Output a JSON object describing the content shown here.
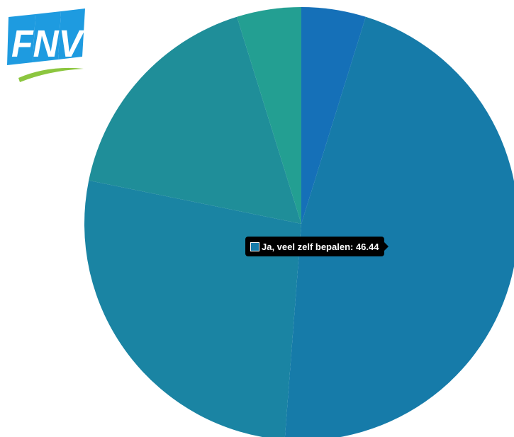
{
  "brand": {
    "logo_text": "FNV",
    "logo_icon": "fnv-logo"
  },
  "chart_data": {
    "type": "pie",
    "categories": [
      "",
      "Ja, veel zelf bepalen",
      "",
      "",
      ""
    ],
    "values": [
      4.8,
      46.44,
      27.0,
      17.0,
      4.8
    ],
    "colors": [
      "#1570b8",
      "#167ba9",
      "#1a84a3",
      "#1f8e99",
      "#239f92"
    ],
    "start_angle_deg": 0,
    "legend": "none"
  },
  "tooltip": {
    "label": "Ja, veel zelf bepalen",
    "value": "46.44",
    "text": "Ja, veel zelf bepalen: 46.44",
    "swatch_color": "#167ba9"
  }
}
